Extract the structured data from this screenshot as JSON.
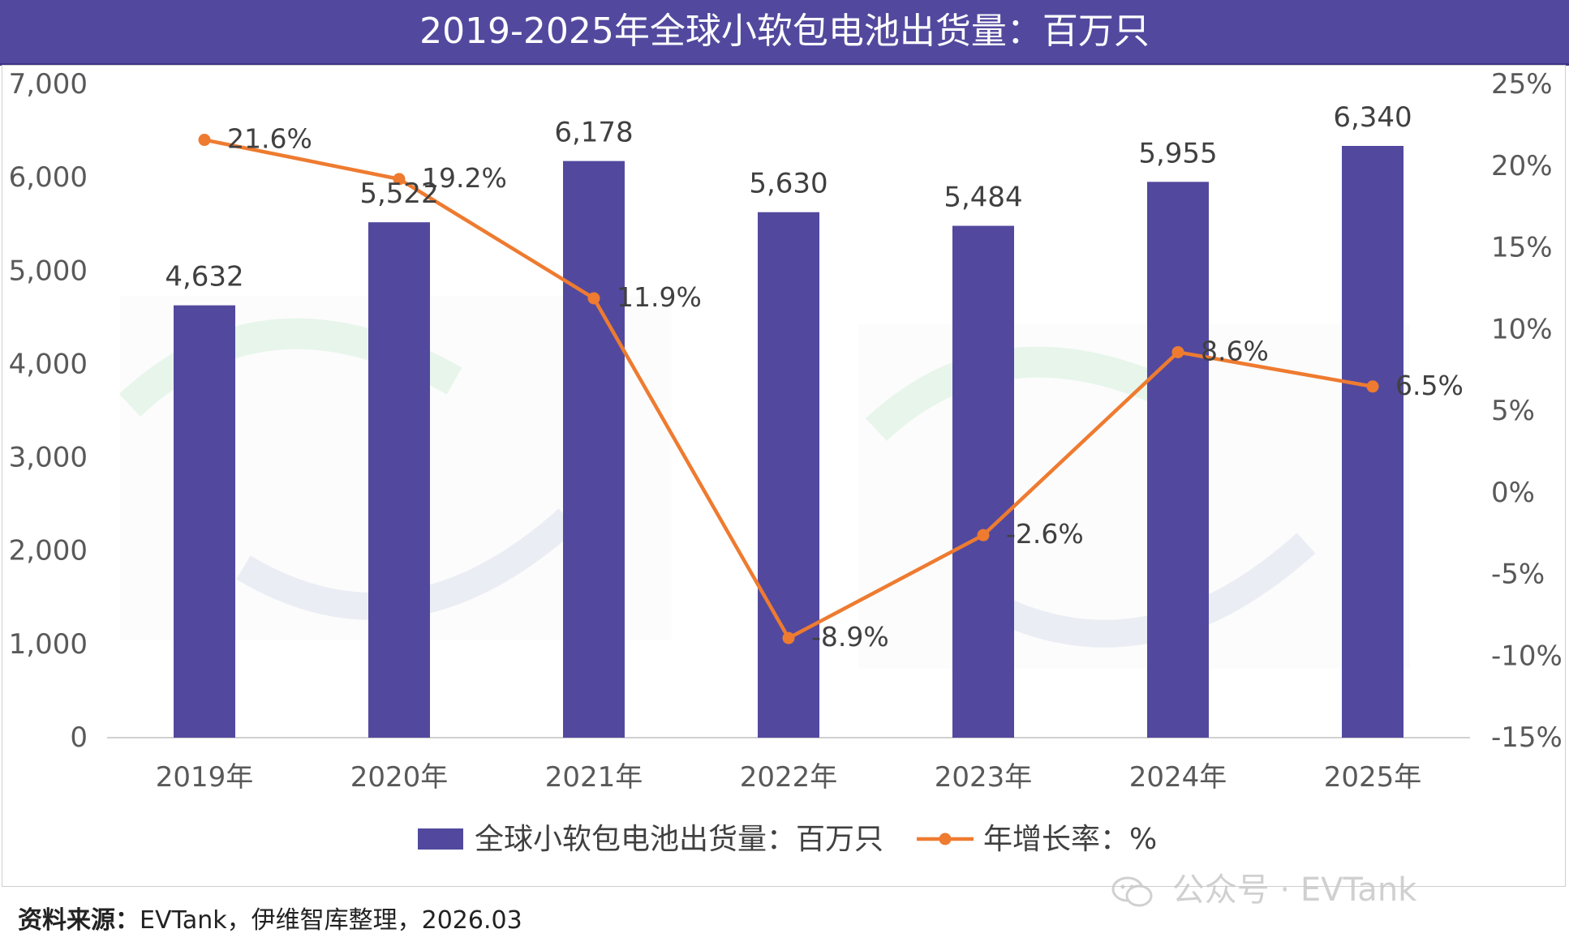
{
  "title": "2019-2025年全球小软包电池出货量：百万只",
  "chart_data": {
    "type": "bar+line",
    "categories": [
      "2019年",
      "2020年",
      "2021年",
      "2022年",
      "2023年",
      "2024年",
      "2025年"
    ],
    "series": [
      {
        "name": "全球小软包电池出货量：百万只",
        "type": "bar",
        "axis": "left",
        "color": "#52499e",
        "values": [
          4632,
          5522,
          6178,
          5630,
          5484,
          5955,
          6340
        ],
        "value_labels": [
          "4,632",
          "5,522",
          "6,178",
          "5,630",
          "5,484",
          "5,955",
          "6,340"
        ]
      },
      {
        "name": "年增长率：%",
        "type": "line",
        "axis": "right",
        "color": "#ee7b30",
        "values": [
          21.6,
          19.2,
          11.9,
          -8.9,
          -2.6,
          8.6,
          6.5
        ],
        "value_labels": [
          "21.6%",
          "19.2%",
          "11.9%",
          "-8.9%",
          "-2.6%",
          "8.6%",
          "6.5%"
        ]
      }
    ],
    "y_left": {
      "range": [
        0,
        7000
      ],
      "ticks": [
        0,
        1000,
        2000,
        3000,
        4000,
        5000,
        6000,
        7000
      ],
      "tick_labels": [
        "0",
        "1,000",
        "2,000",
        "3,000",
        "4,000",
        "5,000",
        "6,000",
        "7,000"
      ]
    },
    "y_right": {
      "range": [
        -15,
        25
      ],
      "ticks": [
        -15,
        -10,
        -5,
        0,
        5,
        10,
        15,
        20,
        25
      ],
      "tick_labels": [
        "-15%",
        "-10%",
        "-5%",
        "0%",
        "5%",
        "10%",
        "15%",
        "20%",
        "25%"
      ]
    },
    "grid": false,
    "legend": "bottom"
  },
  "source": {
    "label": "资料来源：",
    "text": "EVTank，伊维智库整理，2026.03"
  },
  "watermark": {
    "text": "公众号 · EVTank",
    "icon": "wechat-icon"
  }
}
